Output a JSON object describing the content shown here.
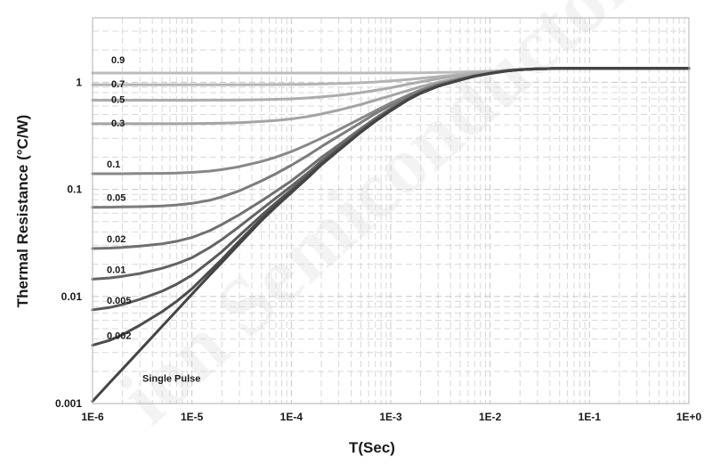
{
  "chart_data": {
    "type": "line",
    "xlabel": "T(Sec)",
    "ylabel": "Thermal Resistance (°C/W)",
    "x_scale": "log",
    "y_scale": "log",
    "xlim": [
      1e-06,
      1
    ],
    "ylim": [
      0.001,
      4
    ],
    "grid": true,
    "x_ticks": [
      "1E-6",
      "1E-5",
      "1E-4",
      "1E-3",
      "1E-2",
      "1E-1",
      "1E+0"
    ],
    "y_ticks": [
      "0.001",
      "0.01",
      "0.1",
      "1"
    ],
    "x": [
      1e-06,
      1.5e-06,
      2e-06,
      3e-06,
      5e-06,
      7e-06,
      1e-05,
      1.5e-05,
      2e-05,
      3e-05,
      5e-05,
      7e-05,
      0.0001,
      0.00015,
      0.0002,
      0.0003,
      0.0005,
      0.0007,
      0.001,
      0.0015,
      0.002,
      0.003,
      0.005,
      0.007,
      0.01,
      0.015,
      0.02,
      0.03,
      0.05,
      0.07,
      0.1,
      0.15,
      0.2,
      0.3,
      0.5,
      0.7,
      1
    ],
    "series": [
      {
        "name": "0.9",
        "color": "#bcbcbc",
        "values": [
          1.22,
          1.22,
          1.22,
          1.22,
          1.22,
          1.22,
          1.22,
          1.22,
          1.22,
          1.22,
          1.22,
          1.22,
          1.22,
          1.22,
          1.22,
          1.22,
          1.22,
          1.221,
          1.222,
          1.224,
          1.227,
          1.233,
          1.245,
          1.255,
          1.27,
          1.29,
          1.31,
          1.33,
          1.345,
          1.35,
          1.35,
          1.35,
          1.35,
          1.35,
          1.35,
          1.35,
          1.35
        ]
      },
      {
        "name": "0.7",
        "color": "#b4b4b4",
        "values": [
          0.95,
          0.95,
          0.95,
          0.95,
          0.95,
          0.95,
          0.95,
          0.95,
          0.95,
          0.95,
          0.951,
          0.952,
          0.954,
          0.958,
          0.963,
          0.973,
          0.99,
          1.005,
          1.03,
          1.06,
          1.09,
          1.13,
          1.18,
          1.22,
          1.26,
          1.3,
          1.32,
          1.34,
          1.35,
          1.35,
          1.35,
          1.35,
          1.35,
          1.35,
          1.35,
          1.35,
          1.35
        ]
      },
      {
        "name": "0.5",
        "color": "#acacac",
        "values": [
          0.68,
          0.68,
          0.68,
          0.68,
          0.68,
          0.68,
          0.68,
          0.681,
          0.682,
          0.684,
          0.688,
          0.693,
          0.7,
          0.715,
          0.73,
          0.755,
          0.8,
          0.84,
          0.89,
          0.96,
          1.01,
          1.08,
          1.16,
          1.21,
          1.25,
          1.3,
          1.32,
          1.34,
          1.35,
          1.35,
          1.35,
          1.35,
          1.35,
          1.35,
          1.35,
          1.35,
          1.35
        ]
      },
      {
        "name": "0.3",
        "color": "#a4a4a4",
        "values": [
          0.41,
          0.41,
          0.41,
          0.41,
          0.41,
          0.41,
          0.411,
          0.413,
          0.415,
          0.42,
          0.43,
          0.44,
          0.455,
          0.48,
          0.505,
          0.55,
          0.62,
          0.68,
          0.75,
          0.84,
          0.91,
          1.0,
          1.1,
          1.17,
          1.23,
          1.29,
          1.315,
          1.335,
          1.35,
          1.35,
          1.35,
          1.35,
          1.35,
          1.35,
          1.35,
          1.35,
          1.35
        ]
      },
      {
        "name": "0.1",
        "color": "#888888",
        "values": [
          0.14,
          0.14,
          0.14,
          0.1405,
          0.141,
          0.142,
          0.144,
          0.148,
          0.153,
          0.163,
          0.182,
          0.2,
          0.225,
          0.265,
          0.3,
          0.36,
          0.46,
          0.54,
          0.64,
          0.76,
          0.85,
          0.96,
          1.08,
          1.15,
          1.22,
          1.28,
          1.31,
          1.335,
          1.35,
          1.35,
          1.35,
          1.35,
          1.35,
          1.35,
          1.35,
          1.35,
          1.35
        ]
      },
      {
        "name": "0.05",
        "color": "#7c7c7c",
        "values": [
          0.068,
          0.0682,
          0.0685,
          0.069,
          0.07,
          0.0715,
          0.074,
          0.079,
          0.085,
          0.097,
          0.12,
          0.14,
          0.168,
          0.21,
          0.25,
          0.315,
          0.42,
          0.51,
          0.61,
          0.74,
          0.83,
          0.95,
          1.07,
          1.15,
          1.21,
          1.28,
          1.31,
          1.335,
          1.35,
          1.35,
          1.35,
          1.35,
          1.35,
          1.35,
          1.35,
          1.35,
          1.35
        ]
      },
      {
        "name": "0.02",
        "color": "#707070",
        "values": [
          0.028,
          0.0283,
          0.0287,
          0.0295,
          0.031,
          0.0327,
          0.0355,
          0.041,
          0.047,
          0.058,
          0.078,
          0.096,
          0.12,
          0.16,
          0.198,
          0.26,
          0.37,
          0.46,
          0.57,
          0.71,
          0.81,
          0.93,
          1.06,
          1.14,
          1.21,
          1.28,
          1.31,
          1.335,
          1.35,
          1.35,
          1.35,
          1.35,
          1.35,
          1.35,
          1.35,
          1.35,
          1.35
        ]
      },
      {
        "name": "0.01",
        "color": "#646464",
        "values": [
          0.0145,
          0.0149,
          0.0154,
          0.0164,
          0.0183,
          0.0202,
          0.023,
          0.0285,
          0.034,
          0.045,
          0.065,
          0.083,
          0.107,
          0.145,
          0.183,
          0.245,
          0.355,
          0.445,
          0.555,
          0.7,
          0.8,
          0.925,
          1.055,
          1.14,
          1.21,
          1.28,
          1.31,
          1.335,
          1.35,
          1.35,
          1.35,
          1.35,
          1.35,
          1.35,
          1.35,
          1.35,
          1.35
        ]
      },
      {
        "name": "0.005",
        "color": "#585858",
        "values": [
          0.0075,
          0.0079,
          0.0084,
          0.0094,
          0.0112,
          0.013,
          0.0158,
          0.0211,
          0.0262,
          0.037,
          0.057,
          0.075,
          0.099,
          0.137,
          0.175,
          0.237,
          0.347,
          0.438,
          0.55,
          0.695,
          0.795,
          0.92,
          1.05,
          1.14,
          1.21,
          1.28,
          1.31,
          1.335,
          1.35,
          1.35,
          1.35,
          1.35,
          1.35,
          1.35,
          1.35,
          1.35,
          1.35
        ]
      },
      {
        "name": "0.002",
        "color": "#4c4c4c",
        "values": [
          0.0035,
          0.0039,
          0.0044,
          0.0054,
          0.0072,
          0.009,
          0.0118,
          0.0171,
          0.0222,
          0.033,
          0.053,
          0.071,
          0.095,
          0.133,
          0.171,
          0.233,
          0.343,
          0.434,
          0.545,
          0.69,
          0.79,
          0.92,
          1.05,
          1.14,
          1.21,
          1.28,
          1.31,
          1.335,
          1.35,
          1.35,
          1.35,
          1.35,
          1.35,
          1.35,
          1.35,
          1.35,
          1.35
        ]
      },
      {
        "name": "Single Pulse",
        "color": "#444444",
        "values": [
          0.00105,
          0.00158,
          0.0021,
          0.00315,
          0.00525,
          0.00735,
          0.0105,
          0.0157,
          0.0208,
          0.031,
          0.051,
          0.069,
          0.093,
          0.131,
          0.169,
          0.231,
          0.341,
          0.432,
          0.542,
          0.688,
          0.79,
          0.918,
          1.05,
          1.14,
          1.21,
          1.28,
          1.31,
          1.335,
          1.35,
          1.35,
          1.35,
          1.35,
          1.35,
          1.35,
          1.35,
          1.35,
          1.35
        ]
      }
    ]
  }
}
